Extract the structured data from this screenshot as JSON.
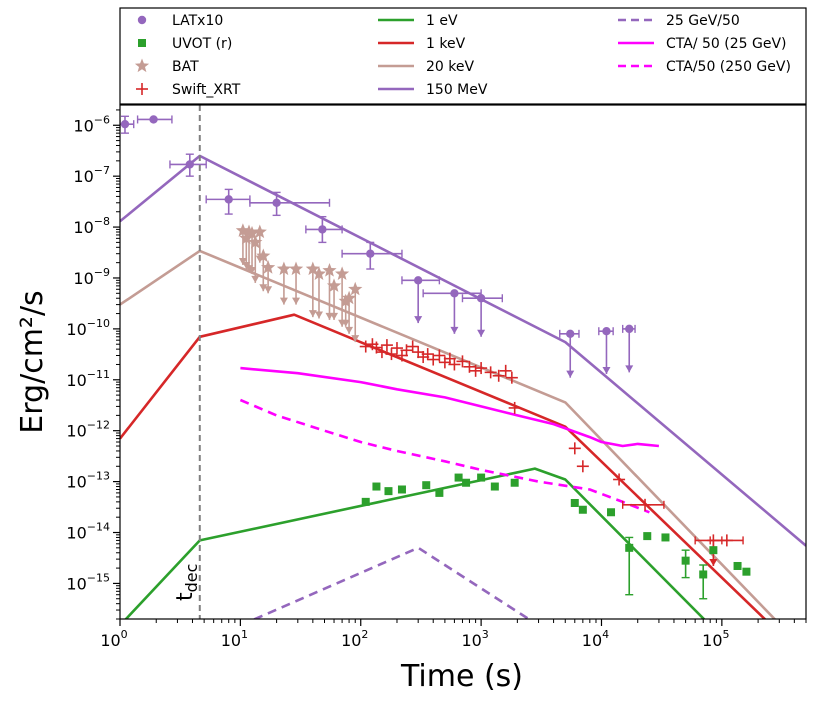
{
  "chart_data": {
    "type": "line",
    "title": "",
    "xlabel": "Time (s)",
    "ylabel": "Erg/cm²/s",
    "xscale": "log",
    "yscale": "log",
    "xlim": [
      1,
      500000
    ],
    "ylim": [
      2e-16,
      2.5e-06
    ],
    "x_ticks": [
      {
        "value": 1,
        "base": "10",
        "exp": "0"
      },
      {
        "value": 10,
        "base": "10",
        "exp": "1"
      },
      {
        "value": 100,
        "base": "10",
        "exp": "2"
      },
      {
        "value": 1000,
        "base": "10",
        "exp": "3"
      },
      {
        "value": 10000,
        "base": "10",
        "exp": "4"
      },
      {
        "value": 100000,
        "base": "10",
        "exp": "5"
      }
    ],
    "y_ticks": [
      {
        "value": 1e-15,
        "base": "10",
        "exp": "−15"
      },
      {
        "value": 1e-14,
        "base": "10",
        "exp": "−14"
      },
      {
        "value": 1e-13,
        "base": "10",
        "exp": "−13"
      },
      {
        "value": 1e-12,
        "base": "10",
        "exp": "−12"
      },
      {
        "value": 1e-11,
        "base": "10",
        "exp": "−11"
      },
      {
        "value": 1e-10,
        "base": "10",
        "exp": "−10"
      },
      {
        "value": 1e-09,
        "base": "10",
        "exp": "−9"
      },
      {
        "value": 1e-08,
        "base": "10",
        "exp": "−8"
      },
      {
        "value": 1e-07,
        "base": "10",
        "exp": "−7"
      },
      {
        "value": 1e-06,
        "base": "10",
        "exp": "−6"
      }
    ],
    "annotation": {
      "text": "t",
      "sub": "dec",
      "x": 4.6
    },
    "vline": {
      "x": 4.6,
      "color": "#808080"
    },
    "legend": {
      "placement": "top (outside plot, 3 columns)",
      "columns": [
        [
          {
            "label": "LATx10",
            "kind": "marker",
            "marker": "circle",
            "color": "#9467bd"
          },
          {
            "label": "UVOT (r)",
            "kind": "marker",
            "marker": "square",
            "color": "#2ca02c"
          },
          {
            "label": "BAT",
            "kind": "marker",
            "marker": "star",
            "color": "#c49c94"
          },
          {
            "label": "Swift_XRT",
            "kind": "marker",
            "marker": "plus",
            "color": "#d62728"
          }
        ],
        [
          {
            "label": "1 eV",
            "kind": "line",
            "dash": "solid",
            "color": "#2ca02c"
          },
          {
            "label": "1 keV",
            "kind": "line",
            "dash": "solid",
            "color": "#d62728"
          },
          {
            "label": "20 keV",
            "kind": "line",
            "dash": "solid",
            "color": "#c49c94"
          },
          {
            "label": "150 MeV",
            "kind": "line",
            "dash": "solid",
            "color": "#9467bd"
          }
        ],
        [
          {
            "label": "25 GeV/50",
            "kind": "line",
            "dash": "dashed",
            "color": "#9467bd"
          },
          {
            "label": "CTA/ 50 (25 GeV)",
            "kind": "line",
            "dash": "solid",
            "color": "#ff00ff"
          },
          {
            "label": "CTA/50 (250 GeV)",
            "kind": "line",
            "dash": "dashed",
            "color": "#ff00ff"
          }
        ]
      ]
    },
    "series": [
      {
        "name": "150 MeV",
        "style": "line",
        "dash": "solid",
        "color": "#9467bd",
        "points": [
          [
            1,
            1.3e-08
          ],
          [
            4.6,
            2.5e-07
          ],
          [
            5000,
            5.5e-11
          ],
          [
            500000,
            5.5e-15
          ]
        ]
      },
      {
        "name": "20 keV",
        "style": "line",
        "dash": "solid",
        "color": "#c49c94",
        "points": [
          [
            1,
            3e-10
          ],
          [
            4.6,
            3.4e-09
          ],
          [
            5000,
            3.6e-12
          ],
          [
            300000,
            1.6e-16
          ]
        ]
      },
      {
        "name": "1 keV",
        "style": "line",
        "dash": "solid",
        "color": "#d62728",
        "points": [
          [
            1,
            7e-13
          ],
          [
            4.6,
            7e-11
          ],
          [
            28,
            1.9e-10
          ],
          [
            5000,
            1.2e-12
          ],
          [
            250000,
            1.6e-16
          ]
        ]
      },
      {
        "name": "1 eV",
        "style": "line",
        "dash": "solid",
        "color": "#2ca02c",
        "points": [
          [
            1,
            1.5e-16
          ],
          [
            4.6,
            7e-15
          ],
          [
            2800,
            1.8e-13
          ],
          [
            5000,
            1.1e-13
          ],
          [
            80000,
            1.5e-16
          ]
        ]
      },
      {
        "name": "25 GeV/50",
        "style": "line",
        "dash": "dashed",
        "color": "#9467bd",
        "points": [
          [
            10,
            1.5e-16
          ],
          [
            300,
            5e-15
          ],
          [
            3000,
            1.5e-16
          ]
        ]
      },
      {
        "name": "CTA/ 50 (25 GeV)",
        "style": "line",
        "dash": "solid",
        "color": "#ff00ff",
        "points": [
          [
            10,
            1.7e-11
          ],
          [
            30,
            1.35e-11
          ],
          [
            100,
            9e-12
          ],
          [
            200,
            6.5e-12
          ],
          [
            500,
            4.5e-12
          ],
          [
            1000,
            3e-12
          ],
          [
            2000,
            2e-12
          ],
          [
            4000,
            1.35e-12
          ],
          [
            8000,
            7.5e-13
          ],
          [
            10000,
            6e-13
          ],
          [
            15000,
            5e-13
          ],
          [
            20000,
            5.5e-13
          ],
          [
            30000,
            5e-13
          ]
        ]
      },
      {
        "name": "CTA/50 (250 GeV)",
        "style": "line",
        "dash": "dashed",
        "color": "#ff00ff",
        "points": [
          [
            10,
            4e-12
          ],
          [
            20,
            2e-12
          ],
          [
            50,
            1e-12
          ],
          [
            100,
            6e-13
          ],
          [
            200,
            4e-13
          ],
          [
            500,
            2.5e-13
          ],
          [
            1000,
            1.7e-13
          ],
          [
            3000,
            1e-13
          ],
          [
            8000,
            7e-14
          ],
          [
            15000,
            4e-14
          ],
          [
            25000,
            2.5e-14
          ]
        ]
      },
      {
        "name": "LATx10",
        "style": "errorbar",
        "marker": "circle",
        "color": "#9467bd",
        "points": [
          {
            "x": 1.1,
            "y": 1.05e-06,
            "xerr": [
              1.0,
              1.3
            ],
            "yerr": [
              7e-07,
              1.5e-06
            ]
          },
          {
            "x": 1.9,
            "y": 1.3e-06,
            "xerr": [
              1.4,
              2.7
            ],
            "yerr": null
          },
          {
            "x": 3.8,
            "y": 1.7e-07,
            "xerr": [
              2.6,
              5.2
            ],
            "yerr": [
              1e-07,
              2.7e-07
            ]
          },
          {
            "x": 8,
            "y": 3.5e-08,
            "xerr": [
              5.2,
              12
            ],
            "yerr": [
              1.8e-08,
              5.5e-08
            ]
          },
          {
            "x": 20,
            "y": 3e-08,
            "xerr": [
              12,
              55
            ],
            "yerr": [
              1.7e-08,
              4.8e-08
            ]
          },
          {
            "x": 48,
            "y": 9e-09,
            "xerr": [
              35,
              70
            ],
            "yerr": [
              5e-09,
              1.6e-08
            ]
          },
          {
            "x": 120,
            "y": 3e-09,
            "xerr": [
              70,
              220
            ],
            "yerr": [
              1.5e-09,
              5e-09
            ]
          },
          {
            "x": 300,
            "y": 9e-10,
            "xerr": [
              220,
              450
            ],
            "yerr": null,
            "ul": true,
            "ul_to": 1.3e-10
          },
          {
            "x": 600,
            "y": 5e-10,
            "xerr": [
              330,
              1000
            ],
            "yerr": null,
            "ul": true,
            "ul_to": 8e-11
          },
          {
            "x": 1000,
            "y": 4e-10,
            "xerr": [
              700,
              1500
            ],
            "yerr": null,
            "ul": true,
            "ul_to": 7e-11
          },
          {
            "x": 5500,
            "y": 8e-11,
            "xerr": [
              4500,
              6500
            ],
            "yerr": null,
            "ul": true,
            "ul_to": 1.1e-11
          },
          {
            "x": 11000,
            "y": 9e-11,
            "xerr": [
              9500,
              12500
            ],
            "yerr": null,
            "ul": true,
            "ul_to": 1.3e-11
          },
          {
            "x": 17000,
            "y": 1e-10,
            "xerr": [
              15000,
              19000
            ],
            "yerr": null,
            "ul": true,
            "ul_to": 1.4e-11
          }
        ]
      },
      {
        "name": "BAT",
        "style": "upperlimit",
        "marker": "star",
        "color": "#c49c94",
        "points": [
          {
            "x": 10.5,
            "y": 8.5e-09,
            "ul_to": 1.8e-09
          },
          {
            "x": 11.2,
            "y": 6e-09,
            "ul_to": 1.5e-09
          },
          {
            "x": 11.8,
            "y": 8e-09,
            "ul_to": 1.3e-09
          },
          {
            "x": 12.5,
            "y": 7.5e-09,
            "ul_to": 1.2e-09
          },
          {
            "x": 13.3,
            "y": 5e-09,
            "ul_to": 8e-10
          },
          {
            "x": 14.5,
            "y": 8e-09,
            "ul_to": 2e-09
          },
          {
            "x": 15.5,
            "y": 2.7e-09,
            "ul_to": 5.5e-10
          },
          {
            "x": 17,
            "y": 1.6e-09,
            "ul_to": 5e-10
          },
          {
            "x": 23,
            "y": 1.5e-09,
            "ul_to": 3e-10
          },
          {
            "x": 29,
            "y": 1.5e-09,
            "ul_to": 3e-10
          },
          {
            "x": 40,
            "y": 1.5e-09,
            "ul_to": 1.7e-10
          },
          {
            "x": 45,
            "y": 1.2e-09,
            "ul_to": 1.6e-10
          },
          {
            "x": 55,
            "y": 1.4e-09,
            "ul_to": 1.5e-10
          },
          {
            "x": 60,
            "y": 7e-10,
            "ul_to": 1.5e-10
          },
          {
            "x": 70,
            "y": 1.2e-09,
            "ul_to": 1.1e-10
          },
          {
            "x": 75,
            "y": 3.5e-10,
            "ul_to": 1.1e-10
          },
          {
            "x": 80,
            "y": 4e-10,
            "ul_to": 8e-11
          },
          {
            "x": 90,
            "y": 6e-10,
            "ul_to": 5.5e-11
          }
        ]
      },
      {
        "name": "Swift_XRT",
        "style": "errorbar",
        "marker": "plus",
        "color": "#d62728",
        "points": [
          {
            "x": 110,
            "y": 4.5e-11
          },
          {
            "x": 125,
            "y": 5e-11
          },
          {
            "x": 135,
            "y": 4.3e-11
          },
          {
            "x": 150,
            "y": 3.5e-11
          },
          {
            "x": 165,
            "y": 4.8e-11
          },
          {
            "x": 180,
            "y": 3.2e-11
          },
          {
            "x": 200,
            "y": 4.2e-11
          },
          {
            "x": 220,
            "y": 3e-11
          },
          {
            "x": 240,
            "y": 3.8e-11
          },
          {
            "x": 270,
            "y": 4.5e-11
          },
          {
            "x": 300,
            "y": 3.5e-11
          },
          {
            "x": 330,
            "y": 2.8e-11
          },
          {
            "x": 360,
            "y": 3.2e-11
          },
          {
            "x": 400,
            "y": 2.5e-11
          },
          {
            "x": 450,
            "y": 3e-11
          },
          {
            "x": 500,
            "y": 2.2e-11
          },
          {
            "x": 550,
            "y": 2.6e-11
          },
          {
            "x": 600,
            "y": 2e-11
          },
          {
            "x": 700,
            "y": 2.3e-11
          },
          {
            "x": 800,
            "y": 1.8e-11
          },
          {
            "x": 900,
            "y": 1.5e-11
          },
          {
            "x": 1000,
            "y": 1.7e-11
          },
          {
            "x": 1200,
            "y": 1.4e-11
          },
          {
            "x": 1400,
            "y": 1.2e-11
          },
          {
            "x": 1600,
            "y": 1.5e-11
          },
          {
            "x": 1800,
            "y": 1.1e-11
          },
          {
            "x": 1900,
            "y": 2.8e-12
          },
          {
            "x": 6000,
            "y": 4.5e-13
          },
          {
            "x": 7000,
            "y": 2e-13
          },
          {
            "x": 14000,
            "y": 1.1e-13
          },
          {
            "x": 23000,
            "y": 3.5e-14,
            "xerr": [
              15000,
              33000
            ]
          },
          {
            "x": 85000,
            "y": 7e-15,
            "xerr": [
              60000,
              100000
            ],
            "ul": true,
            "ul_to": 2.2e-15
          },
          {
            "x": 110000,
            "y": 7e-15,
            "xerr": [
              80000,
              150000
            ]
          }
        ]
      },
      {
        "name": "UVOT (r)",
        "style": "errorbar",
        "marker": "square",
        "color": "#2ca02c",
        "points": [
          {
            "x": 110,
            "y": 4e-14
          },
          {
            "x": 135,
            "y": 8e-14
          },
          {
            "x": 170,
            "y": 6.5e-14
          },
          {
            "x": 220,
            "y": 7e-14
          },
          {
            "x": 350,
            "y": 8.5e-14
          },
          {
            "x": 450,
            "y": 6e-14
          },
          {
            "x": 650,
            "y": 1.2e-13
          },
          {
            "x": 750,
            "y": 9.5e-14
          },
          {
            "x": 1000,
            "y": 1.2e-13
          },
          {
            "x": 1300,
            "y": 8e-14
          },
          {
            "x": 1900,
            "y": 9.5e-14
          },
          {
            "x": 6000,
            "y": 3.8e-14
          },
          {
            "x": 7000,
            "y": 2.8e-14
          },
          {
            "x": 12000,
            "y": 2.5e-14
          },
          {
            "x": 17000,
            "y": 5e-15,
            "yerr": [
              6e-16,
              8e-15
            ]
          },
          {
            "x": 24000,
            "y": 8.5e-15
          },
          {
            "x": 34000,
            "y": 8e-15
          },
          {
            "x": 50000,
            "y": 2.8e-15,
            "yerr": [
              1.3e-15,
              4.5e-15
            ]
          },
          {
            "x": 70000,
            "y": 1.5e-15,
            "yerr": [
              5e-16,
              2.3e-15
            ]
          },
          {
            "x": 85000,
            "y": 4.5e-15
          },
          {
            "x": 135000,
            "y": 2.2e-15
          },
          {
            "x": 160000,
            "y": 1.7e-15
          }
        ]
      }
    ]
  }
}
